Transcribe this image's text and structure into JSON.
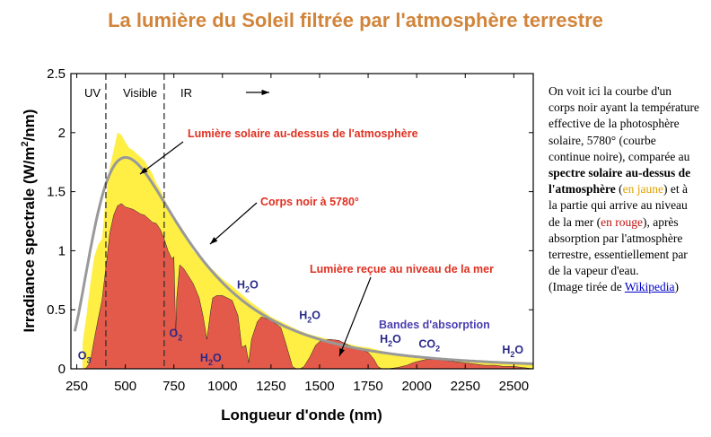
{
  "title": "La lumière du Soleil filtrée par l'atmosphère terrestre",
  "regions": {
    "uv": "UV",
    "visible": "Visible",
    "ir": "IR"
  },
  "annotations": {
    "above_atmosphere": "Lumière solaire au-dessus de l'atmosphère",
    "blackbody": "Corps noir à 5780°",
    "sea_level": "Lumière reçue au niveau de la mer",
    "absorption_bands": "Bandes d'absorption"
  },
  "absorbers": [
    {
      "base": "O",
      "sub": "3",
      "x": 290,
      "y": 0.08
    },
    {
      "base": "O",
      "sub": "2",
      "x": 760,
      "y": 0.27
    },
    {
      "base": "H",
      "sub": "2",
      "tail": "O",
      "x": 940,
      "y": 0.06
    },
    {
      "base": "H",
      "sub": "2",
      "tail": "O",
      "x": 1130,
      "y": 0.68
    },
    {
      "base": "H",
      "sub": "2",
      "tail": "O",
      "x": 1450,
      "y": 0.42
    },
    {
      "base": "H",
      "sub": "2",
      "tail": "O",
      "x": 1865,
      "y": 0.22
    },
    {
      "base": "CO",
      "sub": "2",
      "x": 2065,
      "y": 0.18
    },
    {
      "base": "H",
      "sub": "2",
      "tail": "O",
      "x": 2495,
      "y": 0.13
    }
  ],
  "side_note": {
    "p1": "On voit ici la courbe d'un corps noir ayant la température effective de la photosphère solaire, 5780° (courbe continue noire), comparée au ",
    "b1": "spectre solaire au-dessus de l'atmosphère",
    "p2": " (",
    "yellow": "en jaune",
    "p3": ") et à la partie qui arrive au niveau de la mer (",
    "red": "en rouge",
    "p4": "), après absorption par l'atmosphère terrestre, essentiellement par de la vapeur d'eau.",
    "p5": "(Image tirée de ",
    "link": "Wikipedia",
    "p6": ")"
  },
  "chart_data": {
    "type": "area",
    "xlabel": "Longueur d'onde (nm)",
    "ylabel": "Irradiance spectrale (W/m²/nm)",
    "xlim": [
      220,
      2600
    ],
    "ylim": [
      0,
      2.5
    ],
    "xticks": [
      250,
      500,
      750,
      1000,
      1250,
      1500,
      1750,
      2000,
      2250,
      2500
    ],
    "yticks": [
      0,
      0.5,
      1,
      1.5,
      2,
      2.5
    ],
    "ytick_labels": [
      "0",
      "0.5",
      "1",
      "1.5",
      "2",
      "2.5"
    ],
    "boundaries": [
      400,
      700
    ],
    "series": [
      {
        "fill": "#ffee44",
        "x": [
          280,
          300,
          320,
          340,
          360,
          380,
          400,
          420,
          440,
          460,
          480,
          500,
          520,
          540,
          560,
          580,
          600,
          620,
          640,
          660,
          680,
          700,
          720,
          740,
          760,
          780,
          800,
          850,
          900,
          950,
          1000,
          1050,
          1100,
          1150,
          1200,
          1250,
          1300,
          1350,
          1400,
          1450,
          1500,
          1550,
          1600,
          1650,
          1700,
          1750,
          1800,
          1850,
          1900,
          1950,
          2000,
          2100,
          2200,
          2300,
          2400,
          2500,
          2600
        ],
        "y": [
          0.22,
          0.45,
          0.72,
          0.95,
          1.05,
          1.1,
          1.45,
          1.7,
          1.85,
          2.0,
          1.98,
          1.92,
          1.87,
          1.85,
          1.82,
          1.79,
          1.76,
          1.7,
          1.65,
          1.57,
          1.52,
          1.44,
          1.38,
          1.3,
          1.25,
          1.2,
          1.14,
          1.0,
          0.92,
          0.84,
          0.76,
          0.7,
          0.63,
          0.56,
          0.5,
          0.44,
          0.4,
          0.36,
          0.32,
          0.29,
          0.27,
          0.25,
          0.23,
          0.21,
          0.19,
          0.18,
          0.16,
          0.14,
          0.12,
          0.11,
          0.1,
          0.08,
          0.07,
          0.06,
          0.055,
          0.05,
          0.045
        ]
      },
      {
        "fill": "#e35a4a",
        "x": [
          280,
          290,
          300,
          320,
          340,
          360,
          380,
          400,
          420,
          440,
          460,
          480,
          500,
          520,
          540,
          560,
          580,
          600,
          620,
          640,
          660,
          680,
          700,
          720,
          740,
          750,
          760,
          765,
          780,
          800,
          850,
          880,
          900,
          920,
          940,
          950,
          970,
          1000,
          1050,
          1080,
          1100,
          1120,
          1135,
          1150,
          1180,
          1200,
          1250,
          1300,
          1320,
          1350,
          1360,
          1380,
          1400,
          1420,
          1450,
          1480,
          1500,
          1550,
          1600,
          1650,
          1700,
          1750,
          1780,
          1800,
          1820,
          1850,
          1900,
          1950,
          1980,
          2000,
          2050,
          2100,
          2150,
          2200,
          2250,
          2300,
          2350,
          2400,
          2450,
          2500,
          2550,
          2600
        ],
        "y": [
          0,
          0,
          0.01,
          0.06,
          0.25,
          0.42,
          0.58,
          0.85,
          1.15,
          1.3,
          1.38,
          1.4,
          1.37,
          1.36,
          1.35,
          1.33,
          1.31,
          1.3,
          1.27,
          1.24,
          1.23,
          1.18,
          1.1,
          1.0,
          0.93,
          0.95,
          0.3,
          0.6,
          0.88,
          0.85,
          0.72,
          0.6,
          0.45,
          0.25,
          0.5,
          0.6,
          0.62,
          0.62,
          0.58,
          0.45,
          0.18,
          0.2,
          0.05,
          0.25,
          0.4,
          0.44,
          0.41,
          0.35,
          0.25,
          0.08,
          0.02,
          0,
          0,
          0.02,
          0.1,
          0.2,
          0.23,
          0.25,
          0.24,
          0.2,
          0.17,
          0.14,
          0.08,
          0.02,
          0,
          0,
          0.01,
          0.03,
          0.05,
          0.06,
          0.08,
          0.08,
          0.07,
          0.06,
          0.05,
          0.04,
          0.03,
          0.03,
          0.02,
          0.02,
          0.01,
          0
        ]
      }
    ],
    "blackbody": {
      "temperature_K": 5780,
      "peak_value": 1.79
    },
    "ir_arrow": true
  }
}
